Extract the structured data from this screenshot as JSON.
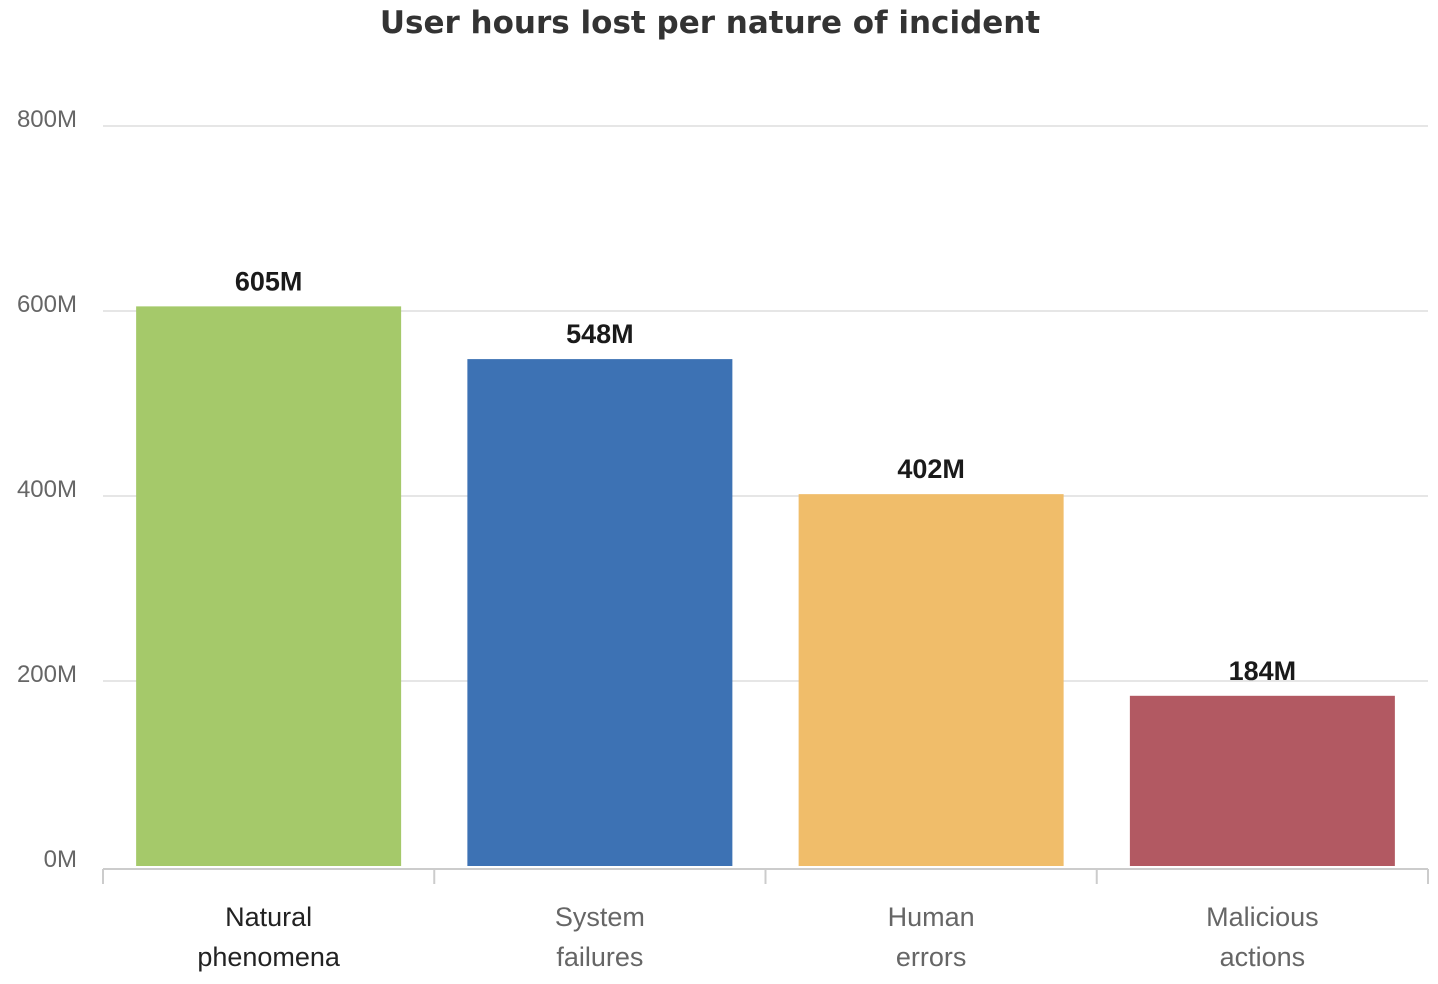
{
  "chart_data": {
    "type": "bar",
    "title": "User hours lost per nature of incident",
    "xlabel": "",
    "ylabel": "",
    "categories": [
      "Natural phenomena",
      "System failures",
      "Human errors",
      "Malicious actions"
    ],
    "category_lines": [
      [
        "Natural",
        "phenomena"
      ],
      [
        "System",
        "failures"
      ],
      [
        "Human",
        "errors"
      ],
      [
        "Malicious",
        "actions"
      ]
    ],
    "values": [
      605,
      548,
      402,
      184
    ],
    "value_labels": [
      "605M",
      "548M",
      "402M",
      "184M"
    ],
    "colors": [
      "#a5c96a",
      "#3d72b4",
      "#f0bd6a",
      "#b25962"
    ],
    "ylim": [
      0,
      800
    ],
    "yticks": [
      0,
      200,
      400,
      600,
      800
    ],
    "ytick_labels": [
      "0M",
      "200M",
      "400M",
      "600M",
      "800M"
    ],
    "grid": true,
    "legend": "none"
  }
}
